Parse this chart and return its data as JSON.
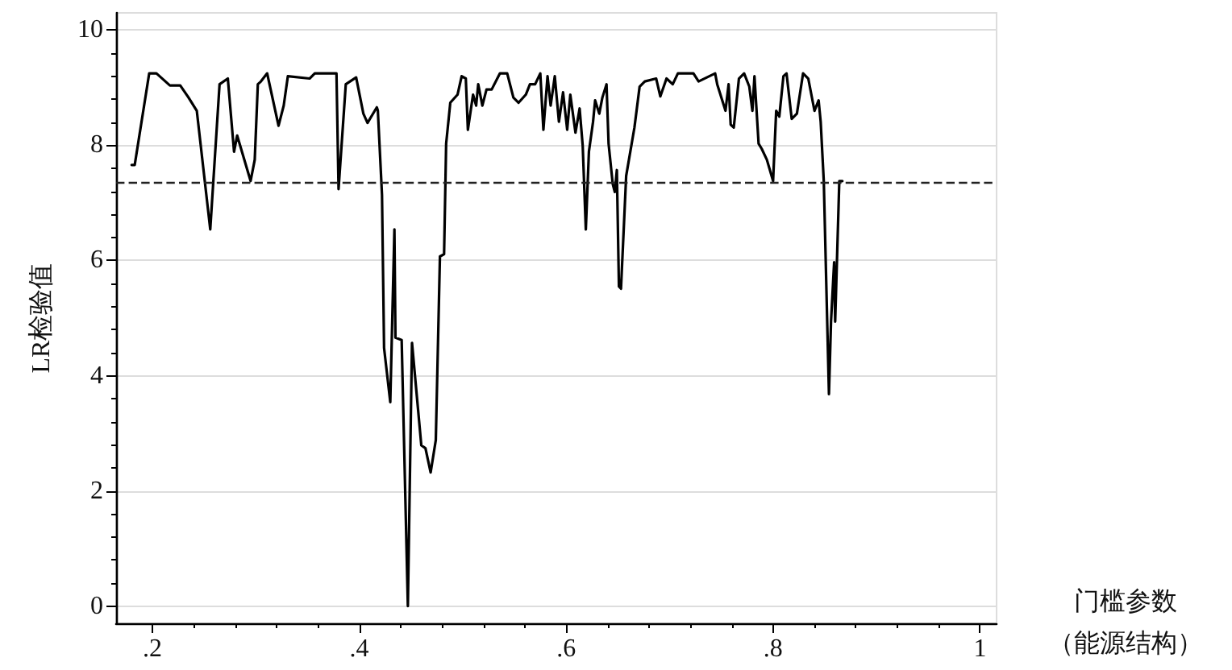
{
  "chart_data": {
    "type": "line",
    "xlabel": "门槛参数（能源结构）",
    "ylabel": "LR检验值",
    "xlim": [
      0.165,
      1.016
    ],
    "ylim": [
      -0.3,
      10.3
    ],
    "xticks": [
      {
        "value": 0.2,
        "label": ".2"
      },
      {
        "value": 0.4,
        "label": ".4"
      },
      {
        "value": 0.6,
        "label": ".6"
      },
      {
        "value": 0.8,
        "label": ".8"
      },
      1
    ],
    "yticks": [
      0,
      2,
      4,
      6,
      8,
      10
    ],
    "grid": "y",
    "marker": "none",
    "line_style": "solid",
    "ref_lines": [
      {
        "axis": "y",
        "value": 7.36,
        "line_style": "dashed",
        "color": "#222222"
      }
    ],
    "series": [
      {
        "color": "#000000",
        "x": [
          0.18,
          0.183,
          0.197,
          0.204,
          0.217,
          0.227,
          0.235,
          0.243,
          0.256,
          0.265,
          0.273,
          0.279,
          0.282,
          0.295,
          0.299,
          0.302,
          0.305,
          0.311,
          0.322,
          0.327,
          0.331,
          0.352,
          0.357,
          0.378,
          0.38,
          0.387,
          0.397,
          0.404,
          0.408,
          0.417,
          0.418,
          0.422,
          0.424,
          0.43,
          0.434,
          0.435,
          0.441,
          0.447,
          0.451,
          0.46,
          0.464,
          0.469,
          0.474,
          0.478,
          0.482,
          0.484,
          0.488,
          0.495,
          0.499,
          0.503,
          0.505,
          0.51,
          0.513,
          0.515,
          0.519,
          0.523,
          0.528,
          0.536,
          0.543,
          0.549,
          0.554,
          0.561,
          0.565,
          0.57,
          0.575,
          0.578,
          0.582,
          0.585,
          0.589,
          0.593,
          0.597,
          0.601,
          0.604,
          0.609,
          0.613,
          0.616,
          0.619,
          0.622,
          0.626,
          0.628,
          0.632,
          0.635,
          0.639,
          0.641,
          0.645,
          0.647,
          0.649,
          0.651,
          0.653,
          0.658,
          0.666,
          0.671,
          0.676,
          0.687,
          0.691,
          0.697,
          0.703,
          0.708,
          0.723,
          0.728,
          0.744,
          0.746,
          0.754,
          0.757,
          0.759,
          0.762,
          0.767,
          0.772,
          0.777,
          0.78,
          0.782,
          0.786,
          0.789,
          0.794,
          0.8,
          0.803,
          0.806,
          0.81,
          0.813,
          0.818,
          0.823,
          0.829,
          0.834,
          0.84,
          0.844,
          0.846,
          0.849,
          0.854,
          0.856,
          0.859,
          0.86,
          0.864,
          0.867
        ],
        "values": [
          7.66,
          7.66,
          9.25,
          9.25,
          9.04,
          9.04,
          8.83,
          8.6,
          6.54,
          9.06,
          9.16,
          7.89,
          8.17,
          7.38,
          7.75,
          9.06,
          9.11,
          9.25,
          8.34,
          8.69,
          9.2,
          9.16,
          9.25,
          9.25,
          7.24,
          9.06,
          9.18,
          8.55,
          8.39,
          8.66,
          8.6,
          7.14,
          4.48,
          3.54,
          6.54,
          4.66,
          4.62,
          0.0,
          4.57,
          2.79,
          2.74,
          2.32,
          2.88,
          6.07,
          6.11,
          8.03,
          8.74,
          8.88,
          9.2,
          9.16,
          8.27,
          8.88,
          8.69,
          9.06,
          8.69,
          8.97,
          8.97,
          9.25,
          9.25,
          8.83,
          8.74,
          8.88,
          9.06,
          9.06,
          9.25,
          8.27,
          9.2,
          8.69,
          9.2,
          8.41,
          8.92,
          8.27,
          8.88,
          8.22,
          8.64,
          7.99,
          6.54,
          7.89,
          8.41,
          8.78,
          8.55,
          8.83,
          9.06,
          8.03,
          7.33,
          7.19,
          7.57,
          5.55,
          5.51,
          7.47,
          8.31,
          9.02,
          9.11,
          9.16,
          8.85,
          9.16,
          9.06,
          9.25,
          9.25,
          9.11,
          9.25,
          9.06,
          8.6,
          9.06,
          8.36,
          8.31,
          9.16,
          9.25,
          9.02,
          8.6,
          9.2,
          8.03,
          7.94,
          7.75,
          7.38,
          8.6,
          8.5,
          9.2,
          9.25,
          8.46,
          8.55,
          9.25,
          9.16,
          8.6,
          8.78,
          8.41,
          7.38,
          3.68,
          4.94,
          5.97,
          4.94,
          7.38,
          7.38
        ]
      }
    ]
  }
}
